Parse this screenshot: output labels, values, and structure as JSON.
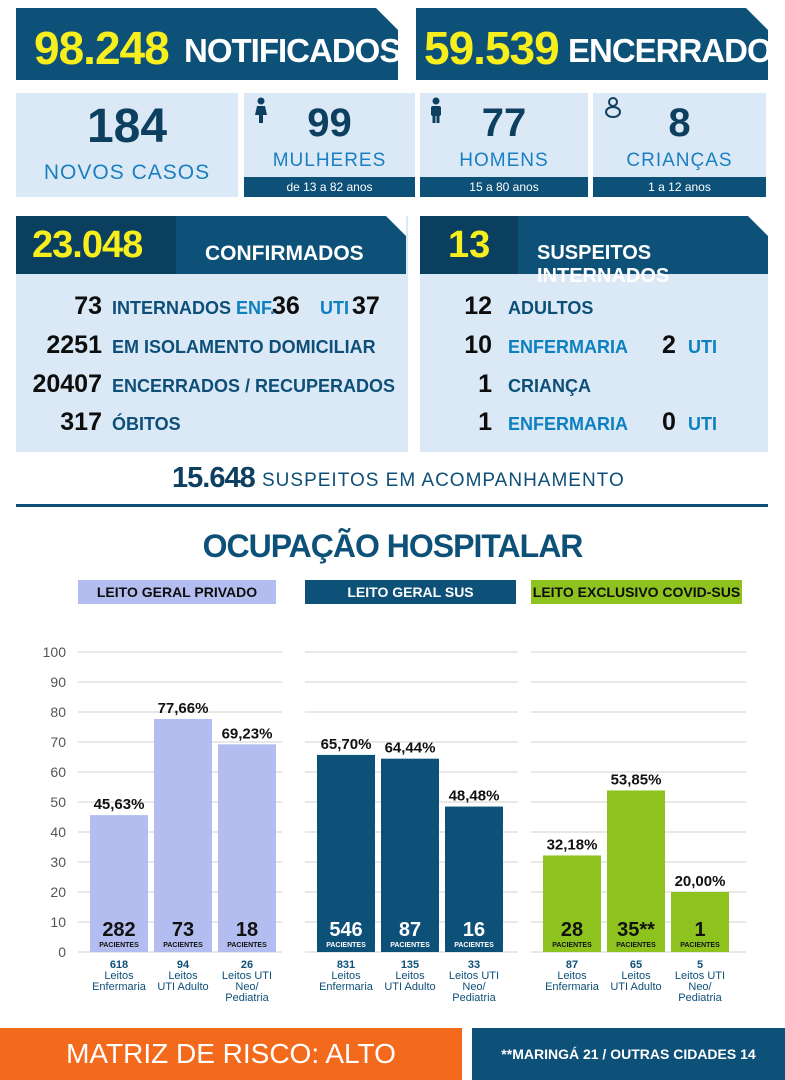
{
  "header": {
    "notificados_num": "98.248",
    "notificados_label": "NOTIFICADOS",
    "encerrados_num": "59.539",
    "encerrados_label": "ENCERRADOS"
  },
  "stats": {
    "novos": {
      "value": "184",
      "label": "NOVOS CASOS"
    },
    "mulheres": {
      "value": "99",
      "label": "MULHERES",
      "sub": "de 13 a 82 anos",
      "icon": "woman-icon"
    },
    "homens": {
      "value": "77",
      "label": "HOMENS",
      "sub": "15 a 80 anos",
      "icon": "man-icon"
    },
    "criancas": {
      "value": "8",
      "label": "CRIANÇAS",
      "sub": "1 a 12 anos",
      "icon": "baby-icon"
    }
  },
  "confirmados": {
    "num": "23.048",
    "label": "CONFIRMADOS",
    "internados_num": "73",
    "internados_label": "INTERNADOS",
    "enf_label": "ENF.",
    "enf_num": "36",
    "uti_label": "UTI",
    "uti_num": "37",
    "isolamento_num": "2251",
    "isolamento_label": "EM ISOLAMENTO DOMICILIAR",
    "recuperados_num": "20407",
    "recuperados_label": "ENCERRADOS / RECUPERADOS",
    "obitos_num": "317",
    "obitos_label": "ÓBITOS"
  },
  "suspeitos": {
    "num": "13",
    "label": "SUSPEITOS INTERNADOS",
    "adultos_num": "12",
    "adultos_label": "ADULTOS",
    "adult_enf_num": "10",
    "adult_enf_label": "ENFERMARIA",
    "adult_uti_num": "2",
    "adult_uti_label": "UTI",
    "crianca_num": "1",
    "crianca_label": "CRIANÇA",
    "crianca_enf_num": "1",
    "crianca_enf_label": "ENFERMARIA",
    "crianca_uti_num": "0",
    "crianca_uti_label": "UTI"
  },
  "acompanhamento": {
    "num": "15.648",
    "label": "SUSPEITOS EM ACOMPANHAMENTO"
  },
  "ocupacao_title": "OCUPAÇÃO HOSPITALAR",
  "colors": {
    "navy": "#0d5078",
    "yellow": "#f7ef1d",
    "lavender": "#b4bdf0",
    "sus": "#0d5078",
    "covid": "#8ec21e",
    "orange": "#f36a1d"
  },
  "chart_data": [
    {
      "type": "bar",
      "title": "LEITO GERAL PRIVADO",
      "ylim": [
        0,
        100
      ],
      "yticks": [
        "0",
        "10",
        "20",
        "30",
        "40",
        "50",
        "60",
        "70",
        "80",
        "90",
        "100"
      ],
      "values": [
        45.63,
        77.66,
        69.23
      ],
      "value_labels": [
        "45,63%",
        "77,66%",
        "69,23%"
      ],
      "patients": [
        "282",
        "73",
        "18"
      ],
      "patients_label": "PACIENTES",
      "categories": [
        [
          "618",
          "Leitos",
          "Enfermaria"
        ],
        [
          "94",
          "Leitos",
          "UTI Adulto"
        ],
        [
          "26",
          "Leitos UTI",
          "Neo/",
          "Pediatria"
        ]
      ]
    },
    {
      "type": "bar",
      "title": "LEITO GERAL SUS",
      "ylim": [
        0,
        100
      ],
      "values": [
        65.7,
        64.44,
        48.48
      ],
      "value_labels": [
        "65,70%",
        "64,44%",
        "48,48%"
      ],
      "patients": [
        "546",
        "87",
        "16"
      ],
      "patients_label": "PACIENTES",
      "categories": [
        [
          "831",
          "Leitos",
          "Enfermaria"
        ],
        [
          "135",
          "Leitos",
          "UTI Adulto"
        ],
        [
          "33",
          "Leitos UTI",
          "Neo/",
          "Pediatria"
        ]
      ]
    },
    {
      "type": "bar",
      "title": "LEITO EXCLUSIVO COVID-SUS",
      "ylim": [
        0,
        100
      ],
      "values": [
        32.18,
        53.85,
        20.0
      ],
      "value_labels": [
        "32,18%",
        "53,85%",
        "20,00%"
      ],
      "patients": [
        "28",
        "35**",
        "1"
      ],
      "patients_label": "PACIENTES",
      "categories": [
        [
          "87",
          "Leitos",
          "Enfermaria"
        ],
        [
          "65",
          "Leitos",
          "UTI Adulto"
        ],
        [
          "5",
          "Leitos UTI",
          "Neo/",
          "Pediatria"
        ]
      ]
    }
  ],
  "footer": {
    "risk": "MATRIZ DE RISCO: ALTO",
    "note": "**MARINGÁ 21 / OUTRAS CIDADES 14"
  }
}
